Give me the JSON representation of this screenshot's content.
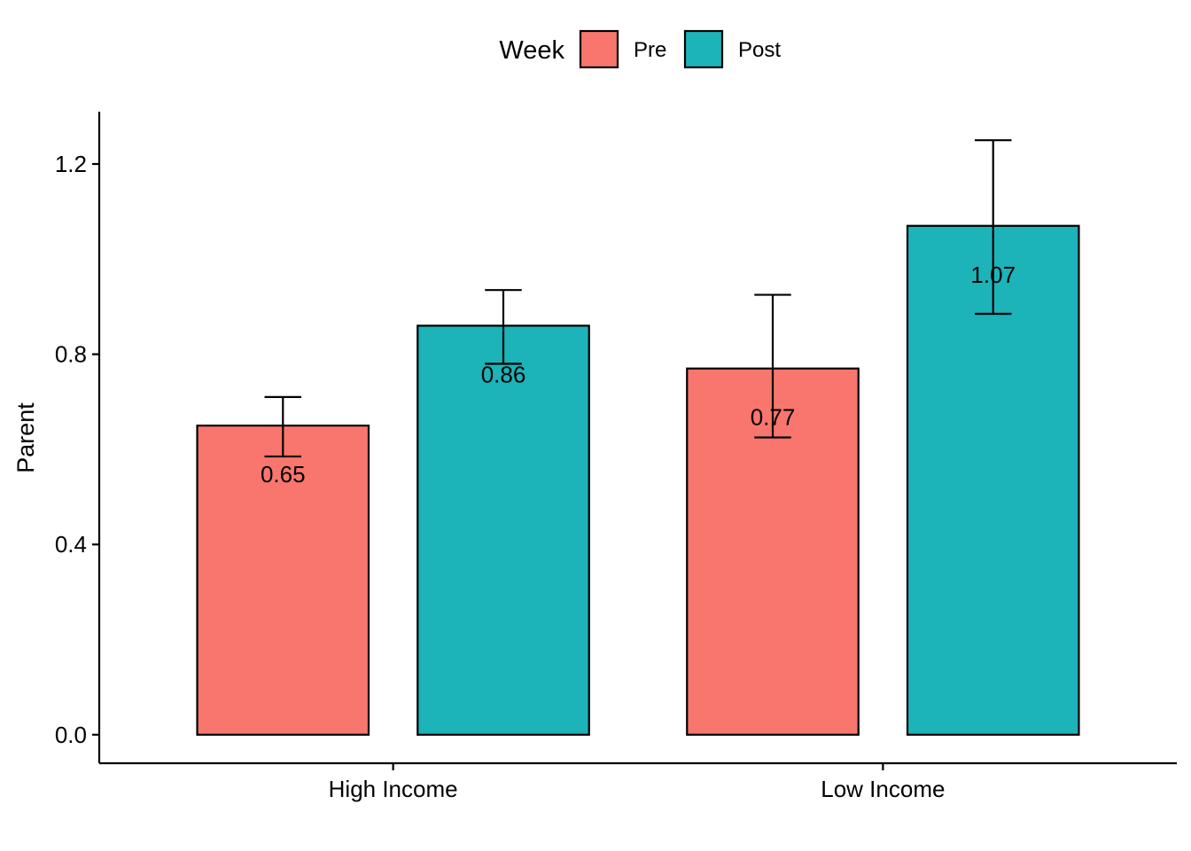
{
  "chart_data": {
    "type": "bar",
    "title": "",
    "xlabel": "",
    "ylabel": "Parent",
    "ylim": [
      -0.06,
      1.31
    ],
    "yticks": [
      0.0,
      0.4,
      0.8,
      1.2
    ],
    "ytick_labels": [
      "0.0",
      "0.4",
      "0.8",
      "1.2"
    ],
    "categories": [
      "High Income",
      "Low Income"
    ],
    "grid": false,
    "legend": {
      "title": "Week",
      "position": "top"
    },
    "series": [
      {
        "name": "Pre",
        "color": "#F8766D",
        "values": [
          0.65,
          0.77
        ],
        "labels": [
          "0.65",
          "0.77"
        ],
        "error_low": [
          0.585,
          0.625
        ],
        "error_high": [
          0.71,
          0.925
        ]
      },
      {
        "name": "Post",
        "color": "#1CB3B9",
        "values": [
          0.86,
          1.07
        ],
        "labels": [
          "0.86",
          "1.07"
        ],
        "error_low": [
          0.78,
          0.885
        ],
        "error_high": [
          0.935,
          1.25
        ]
      }
    ]
  }
}
